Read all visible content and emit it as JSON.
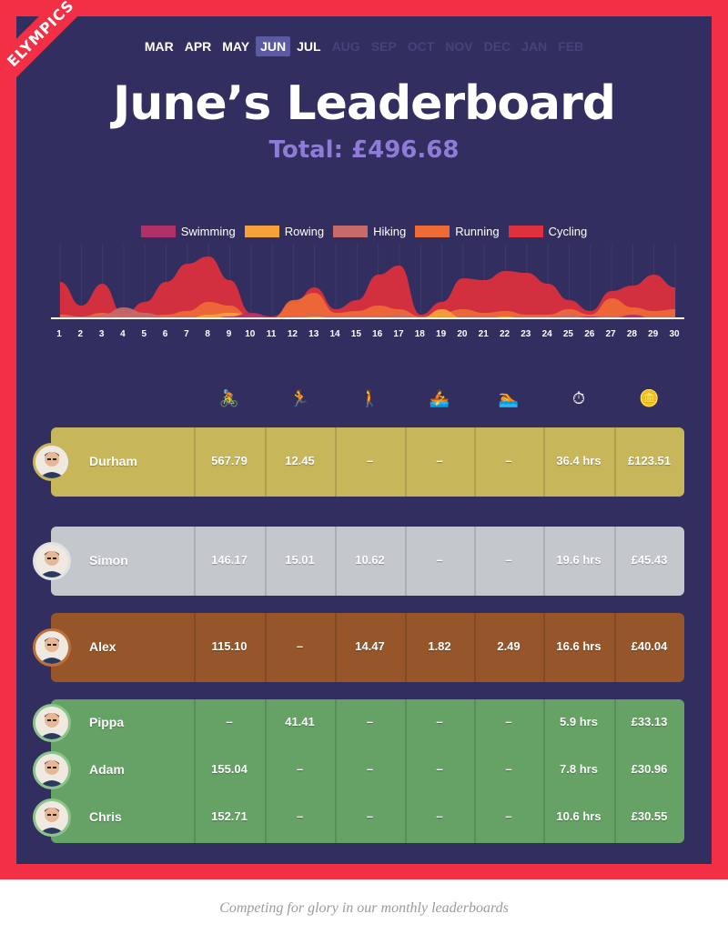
{
  "brand": "ELYMPICS",
  "months": [
    {
      "label": "MAR",
      "state": "normal"
    },
    {
      "label": "APR",
      "state": "normal"
    },
    {
      "label": "MAY",
      "state": "normal"
    },
    {
      "label": "JUN",
      "state": "active"
    },
    {
      "label": "JUL",
      "state": "normal"
    },
    {
      "label": "AUG",
      "state": "dim"
    },
    {
      "label": "SEP",
      "state": "dim"
    },
    {
      "label": "OCT",
      "state": "dim"
    },
    {
      "label": "NOV",
      "state": "dim"
    },
    {
      "label": "DEC",
      "state": "dim"
    },
    {
      "label": "JAN",
      "state": "dim"
    },
    {
      "label": "FEB",
      "state": "dim"
    }
  ],
  "title": "June’s Leaderboard",
  "total": "Total: £496.68",
  "legend": [
    {
      "label": "Swimming",
      "color": "#b0306a"
    },
    {
      "label": "Rowing",
      "color": "#f5a23a"
    },
    {
      "label": "Hiking",
      "color": "#c96a6a"
    },
    {
      "label": "Running",
      "color": "#ef6b36"
    },
    {
      "label": "Cycling",
      "color": "#e0303d"
    }
  ],
  "chart_data": {
    "type": "area",
    "x": [
      1,
      2,
      3,
      4,
      5,
      6,
      7,
      8,
      9,
      10,
      11,
      12,
      13,
      14,
      15,
      16,
      17,
      18,
      19,
      20,
      21,
      22,
      23,
      24,
      25,
      26,
      27,
      28,
      29,
      30
    ],
    "series": [
      {
        "name": "Cycling",
        "values": [
          40,
          14,
          38,
          4,
          18,
          40,
          60,
          68,
          42,
          6,
          2,
          16,
          34,
          10,
          20,
          48,
          58,
          4,
          18,
          44,
          42,
          52,
          50,
          38,
          20,
          8,
          30,
          36,
          48,
          34
        ]
      },
      {
        "name": "Running",
        "values": [
          4,
          2,
          6,
          2,
          2,
          4,
          8,
          18,
          14,
          2,
          0,
          20,
          28,
          6,
          8,
          14,
          10,
          2,
          6,
          10,
          6,
          8,
          4,
          4,
          10,
          4,
          22,
          12,
          8,
          10
        ]
      },
      {
        "name": "Hiking",
        "values": [
          2,
          2,
          4,
          12,
          6,
          2,
          2,
          4,
          4,
          0,
          0,
          2,
          4,
          2,
          2,
          2,
          4,
          2,
          2,
          2,
          2,
          2,
          2,
          2,
          4,
          2,
          2,
          2,
          2,
          2
        ]
      },
      {
        "name": "Rowing",
        "values": [
          0,
          0,
          0,
          0,
          0,
          0,
          0,
          4,
          6,
          4,
          0,
          0,
          2,
          0,
          0,
          0,
          0,
          0,
          10,
          0,
          0,
          2,
          0,
          0,
          0,
          0,
          0,
          0,
          0,
          0
        ]
      },
      {
        "name": "Swimming",
        "values": [
          0,
          0,
          0,
          0,
          0,
          0,
          0,
          0,
          2,
          6,
          0,
          0,
          0,
          0,
          0,
          0,
          0,
          0,
          0,
          0,
          0,
          0,
          0,
          0,
          0,
          2,
          0,
          4,
          0,
          0
        ]
      }
    ]
  },
  "columns": [
    {
      "icon": "cycling-icon",
      "glyph": "🚴"
    },
    {
      "icon": "running-icon",
      "glyph": "🏃"
    },
    {
      "icon": "hiking-icon",
      "glyph": "🚶"
    },
    {
      "icon": "rowing-icon",
      "glyph": "🚣"
    },
    {
      "icon": "swimming-icon",
      "glyph": "🏊"
    },
    {
      "icon": "stopwatch-icon",
      "glyph": "⏱"
    },
    {
      "icon": "coins-icon",
      "glyph": "🪙"
    }
  ],
  "groups": [
    {
      "tier": "gold",
      "color": "#c8b65a",
      "border": "#c8b65a",
      "people": [
        {
          "name": "Durham",
          "values": [
            "567.79",
            "12.45",
            "–",
            "–",
            "–",
            "36.4 hrs",
            "£123.51"
          ]
        }
      ]
    },
    {
      "tier": "silver",
      "color": "#c4c7cc",
      "border": "#e0e3e6",
      "people": [
        {
          "name": "Simon",
          "values": [
            "146.17",
            "15.01",
            "10.62",
            "–",
            "–",
            "19.6 hrs",
            "£45.43"
          ]
        }
      ]
    },
    {
      "tier": "bronze",
      "color": "#96562a",
      "border": "#c0713a",
      "people": [
        {
          "name": "Alex",
          "values": [
            "115.10",
            "–",
            "14.47",
            "1.82",
            "2.49",
            "16.6 hrs",
            "£40.04"
          ]
        }
      ]
    },
    {
      "tier": "green",
      "color": "#66a266",
      "border": "#8bc58b",
      "people": [
        {
          "name": "Pippa",
          "values": [
            "–",
            "41.41",
            "–",
            "–",
            "–",
            "5.9 hrs",
            "£33.13"
          ]
        },
        {
          "name": "Adam",
          "values": [
            "155.04",
            "–",
            "–",
            "–",
            "–",
            "7.8 hrs",
            "£30.96"
          ]
        },
        {
          "name": "Chris",
          "values": [
            "152.71",
            "–",
            "–",
            "–",
            "–",
            "10.6 hrs",
            "£30.55"
          ]
        }
      ]
    }
  ],
  "footer": "Competing for glory in our monthly leaderboards"
}
